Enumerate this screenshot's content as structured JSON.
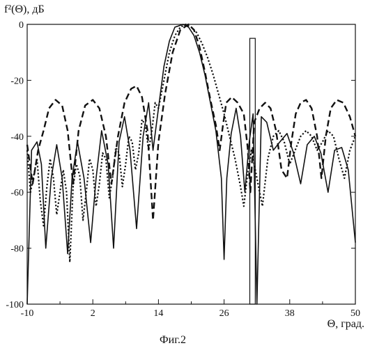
{
  "chart_data": {
    "type": "line",
    "ylabel": "f²(Θ), дБ",
    "xlabel": "Θ, град.",
    "caption": "Фиг.2",
    "xlim": [
      -10,
      50
    ],
    "ylim": [
      -100,
      0
    ],
    "xticks": [
      -10,
      2,
      14,
      26,
      38,
      50
    ],
    "xtick_labels": [
      "-10",
      "2",
      "14",
      "26",
      "38",
      "50"
    ],
    "xtick_minor": [
      -4,
      8,
      20,
      32,
      44
    ],
    "yticks": [
      0,
      -20,
      -40,
      -60,
      -80,
      -100
    ],
    "ytick_labels": [
      "0",
      "-20",
      "-40",
      "-60",
      "-80",
      "-100"
    ],
    "grid": false,
    "bar": {
      "x": 31.2,
      "width": 1.0,
      "bottom": -100,
      "top": -5
    },
    "series": [
      {
        "style": "solid",
        "x": [
          -10,
          -9.2,
          -8.2,
          -7.4,
          -6.6,
          -5.6,
          -4.6,
          -3.6,
          -2.6,
          -1.8,
          -0.8,
          0.4,
          1.6,
          2.6,
          3.6,
          4.8,
          5.8,
          6.8,
          7.8,
          8.8,
          10,
          11.2,
          12.2,
          13.0,
          14.0,
          15.0,
          16.0,
          17.0,
          18.5,
          19.5,
          20.5,
          21.5,
          22.5,
          23.5,
          24.5,
          25.5,
          26.0,
          26.5,
          27.3,
          28.2,
          29.0,
          29.8,
          30.6,
          31.3,
          32.0,
          32.8,
          33.8,
          35.0,
          36.2,
          37.5,
          38.7,
          40.0,
          41.2,
          42.5,
          43.7,
          45.0,
          46.2,
          47.5,
          48.7,
          50
        ],
        "y": [
          -100,
          -45,
          -42,
          -50,
          -80,
          -55,
          -43,
          -55,
          -82,
          -55,
          -42,
          -55,
          -78,
          -55,
          -38,
          -50,
          -80,
          -42,
          -33,
          -45,
          -73,
          -40,
          -28,
          -45,
          -30,
          -15,
          -6,
          -1,
          0,
          -1,
          -4,
          -10,
          -18,
          -28,
          -38,
          -55,
          -84,
          -55,
          -39,
          -30,
          -40,
          -60,
          -42,
          -32,
          -100,
          -33,
          -35,
          -45,
          -42,
          -39,
          -46,
          -57,
          -43,
          -40,
          -46,
          -60,
          -45,
          -44,
          -52,
          -78
        ]
      },
      {
        "style": "dashed",
        "x": [
          -10,
          -9.0,
          -8.0,
          -7.0,
          -6.0,
          -4.8,
          -3.6,
          -2.6,
          -1.6,
          -0.6,
          0.6,
          2.0,
          3.2,
          4.4,
          5.4,
          6.6,
          7.8,
          9.0,
          10.0,
          11.0,
          12.0,
          13.0,
          14.0,
          15.2,
          16.6,
          18.0,
          19.5,
          20.5,
          21.5,
          22.5,
          23.5,
          24.5,
          25.2,
          25.8,
          26.4,
          27.4,
          28.5,
          29.6,
          30.3,
          30.8,
          31.5,
          32.5,
          33.5,
          34.5,
          35.5,
          36.5,
          37.5,
          38.3,
          39.1,
          40.0,
          41.0,
          42.0,
          43.0,
          43.8,
          44.6,
          45.5,
          46.6,
          47.8,
          49.0,
          50
        ],
        "y": [
          -43,
          -57,
          -45,
          -38,
          -30,
          -27,
          -29,
          -38,
          -57,
          -38,
          -29,
          -27,
          -30,
          -40,
          -57,
          -40,
          -28,
          -23,
          -22,
          -26,
          -38,
          -70,
          -42,
          -25,
          -10,
          -2,
          0,
          -2,
          -8,
          -17,
          -27,
          -36,
          -45,
          -36,
          -28,
          -26,
          -28,
          -32,
          -44,
          -60,
          -35,
          -30,
          -28,
          -30,
          -38,
          -52,
          -55,
          -42,
          -32,
          -28,
          -27,
          -30,
          -40,
          -55,
          -40,
          -30,
          -27,
          -28,
          -33,
          -40
        ]
      },
      {
        "style": "dotted",
        "x": [
          -10,
          -9.4,
          -8.8,
          -8.2,
          -7.6,
          -7.0,
          -6.4,
          -5.8,
          -5.2,
          -4.6,
          -4.0,
          -3.4,
          -2.8,
          -2.2,
          -1.6,
          -1.0,
          -0.4,
          0.2,
          0.8,
          1.4,
          2.0,
          2.6,
          3.2,
          3.8,
          4.4,
          5.0,
          5.6,
          6.2,
          6.8,
          7.4,
          8.0,
          8.6,
          9.2,
          9.8,
          10.4,
          11.0,
          11.6,
          12.2,
          12.8,
          13.4,
          14.0,
          15.0,
          16.0,
          17.0,
          18.0,
          19.0,
          20.0,
          21.0,
          22.0,
          23.0,
          24.0,
          25.0,
          26.0,
          27.0,
          28.0,
          29.0,
          29.6,
          30.2,
          31.0,
          32.0,
          33.0,
          34.0,
          35.0,
          36.0,
          37.0,
          38.0,
          39.0,
          40.0,
          41.0,
          42.0,
          43.0,
          44.0,
          45.0,
          46.0,
          47.0,
          48.0,
          49.0,
          50
        ],
        "y": [
          -45,
          -60,
          -54,
          -48,
          -63,
          -72,
          -58,
          -48,
          -55,
          -68,
          -60,
          -52,
          -60,
          -85,
          -58,
          -50,
          -54,
          -70,
          -60,
          -48,
          -52,
          -65,
          -57,
          -46,
          -48,
          -62,
          -55,
          -44,
          -46,
          -58,
          -50,
          -40,
          -42,
          -52,
          -46,
          -34,
          -36,
          -45,
          -38,
          -28,
          -30,
          -20,
          -10,
          -4,
          -1,
          0,
          -1,
          -3,
          -7,
          -12,
          -18,
          -25,
          -32,
          -40,
          -48,
          -58,
          -65,
          -55,
          -45,
          -55,
          -65,
          -48,
          -40,
          -38,
          -42,
          -50,
          -45,
          -40,
          -38,
          -40,
          -45,
          -42,
          -38,
          -40,
          -48,
          -55,
          -45,
          -40
        ]
      }
    ]
  }
}
